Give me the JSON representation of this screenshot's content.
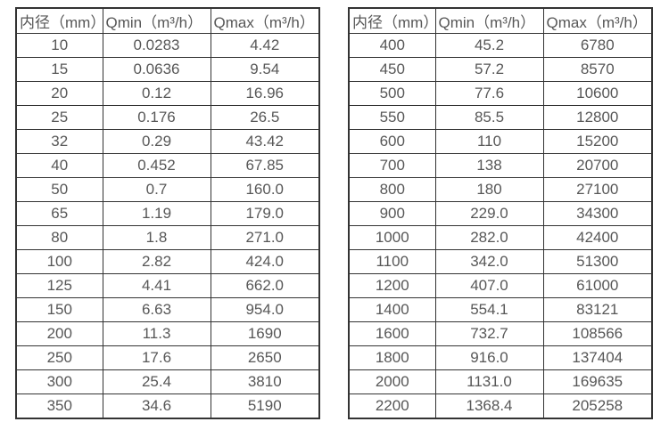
{
  "tables": [
    {
      "headers": [
        "内径（mm）",
        "Qmin（m³/h）",
        "Qmax（m³/h）"
      ],
      "rows": [
        [
          "10",
          "0.0283",
          "4.42"
        ],
        [
          "15",
          "0.0636",
          "9.54"
        ],
        [
          "20",
          "0.12",
          "16.96"
        ],
        [
          "25",
          "0.176",
          "26.5"
        ],
        [
          "32",
          "0.29",
          "43.42"
        ],
        [
          "40",
          "0.452",
          "67.85"
        ],
        [
          "50",
          "0.7",
          "160.0"
        ],
        [
          "65",
          "1.19",
          "179.0"
        ],
        [
          "80",
          "1.8",
          "271.0"
        ],
        [
          "100",
          "2.82",
          "424.0"
        ],
        [
          "125",
          "4.41",
          "662.0"
        ],
        [
          "150",
          "6.63",
          "954.0"
        ],
        [
          "200",
          "11.3",
          "1690"
        ],
        [
          "250",
          "17.6",
          "2650"
        ],
        [
          "300",
          "25.4",
          "3810"
        ],
        [
          "350",
          "34.6",
          "5190"
        ]
      ]
    },
    {
      "headers": [
        "内径（mm）",
        "Qmin（m³/h）",
        "Qmax（m³/h）"
      ],
      "rows": [
        [
          "400",
          "45.2",
          "6780"
        ],
        [
          "450",
          "57.2",
          "8570"
        ],
        [
          "500",
          "77.6",
          "10600"
        ],
        [
          "550",
          "85.5",
          "12800"
        ],
        [
          "600",
          "110",
          "15200"
        ],
        [
          "700",
          "138",
          "20700"
        ],
        [
          "800",
          "180",
          "27100"
        ],
        [
          "900",
          "229.0",
          "34300"
        ],
        [
          "1000",
          "282.0",
          "42400"
        ],
        [
          "1100",
          "342.0",
          "51300"
        ],
        [
          "1200",
          "407.0",
          "61000"
        ],
        [
          "1400",
          "554.1",
          "83121"
        ],
        [
          "1600",
          "732.7",
          "108566"
        ],
        [
          "1800",
          "916.0",
          "137404"
        ],
        [
          "2000",
          "1131.0",
          "169635"
        ],
        [
          "2200",
          "1368.4",
          "205258"
        ]
      ]
    }
  ],
  "colors": {
    "border": "#333333",
    "text": "#575757",
    "background": "#ffffff"
  }
}
